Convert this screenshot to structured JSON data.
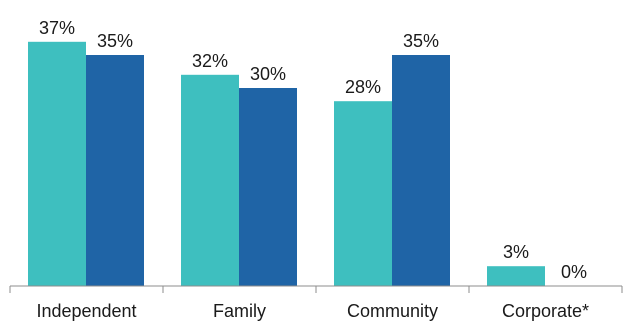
{
  "chart_data": {
    "type": "bar",
    "categories": [
      "Independent",
      "Family",
      "Community",
      "Corporate*"
    ],
    "series": [
      {
        "values": [
          37,
          32,
          28,
          3
        ],
        "labels": [
          "37%",
          "32%",
          "28%",
          "3%"
        ],
        "color": "#3ebfbf"
      },
      {
        "values": [
          35,
          30,
          35,
          0
        ],
        "labels": [
          "35%",
          "30%",
          "35%",
          "0%"
        ],
        "color": "#1f64a6"
      }
    ],
    "title": "",
    "xlabel": "",
    "ylabel": "",
    "ylim": [
      0,
      40
    ],
    "grid": false,
    "legend": "none",
    "axis_color": "#8c8c8c"
  }
}
